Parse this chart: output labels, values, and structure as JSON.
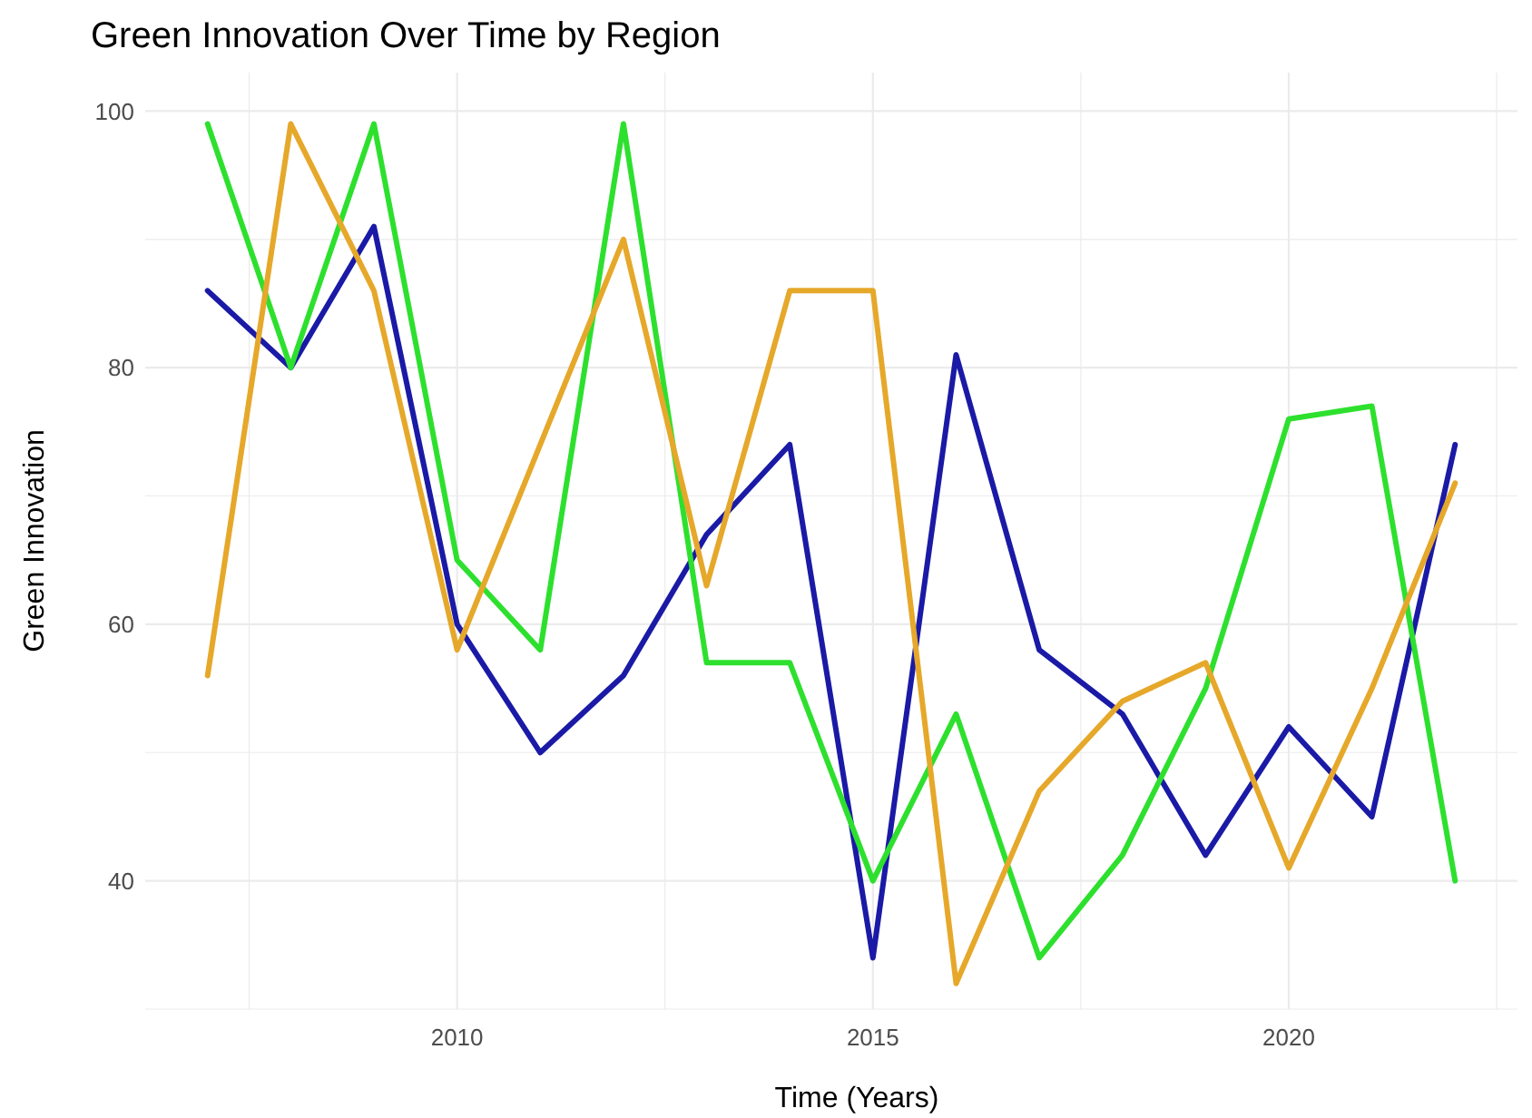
{
  "chart_data": {
    "type": "line",
    "title": "Green Innovation Over Time by Region",
    "xlabel": "Time (Years)",
    "ylabel": "Green Innovation",
    "x": [
      2007,
      2008,
      2009,
      2010,
      2011,
      2012,
      2013,
      2014,
      2015,
      2016,
      2017,
      2018,
      2019,
      2020,
      2021,
      2022
    ],
    "series": [
      {
        "color": "#1a1aa6",
        "values": [
          86,
          80,
          91,
          60,
          50,
          56,
          67,
          74,
          34,
          81,
          58,
          53,
          42,
          52,
          45,
          74
        ]
      },
      {
        "color": "#2ee02e",
        "values": [
          99,
          80,
          99,
          65,
          58,
          99,
          57,
          57,
          40,
          53,
          34,
          42,
          55,
          76,
          77,
          40
        ]
      },
      {
        "color": "#e6a82a",
        "values": [
          56,
          99,
          86,
          58,
          74,
          90,
          63,
          86,
          86,
          32,
          47,
          54,
          57,
          41,
          55,
          71
        ]
      }
    ],
    "xlim": [
      2006.25,
      2022.75
    ],
    "ylim": [
      30,
      103
    ],
    "xticks": [
      {
        "value": 2007.5,
        "label": null
      },
      2010,
      {
        "value": 2012.5,
        "label": null
      },
      2015,
      {
        "value": 2017.5,
        "label": null
      },
      2020,
      {
        "value": 2022.5,
        "label": null
      }
    ],
    "yticks": [
      {
        "value": 30,
        "label": null
      },
      40,
      {
        "value": 50,
        "label": null
      },
      60,
      {
        "value": 70,
        "label": null
      },
      80,
      {
        "value": 90,
        "label": null
      },
      100
    ],
    "grid": true,
    "line_style": "solid",
    "marker": "none"
  }
}
